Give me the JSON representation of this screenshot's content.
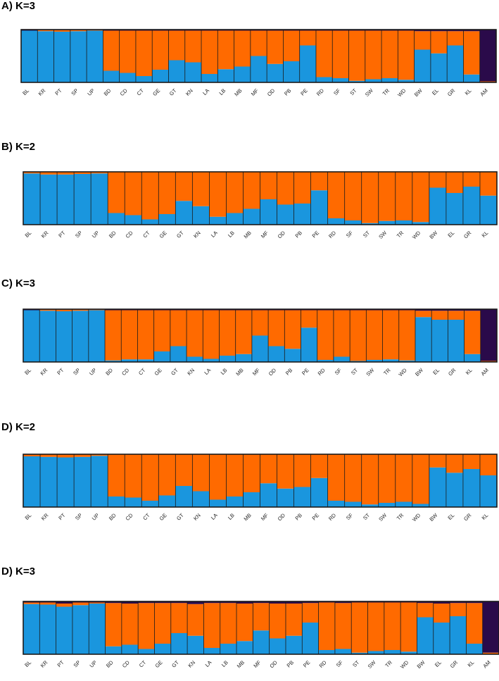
{
  "colors": {
    "blue": "#1a96de",
    "orange": "#ff6a00",
    "purple": "#2a0a4a",
    "frame": "#1a1a1a"
  },
  "chart_data": [
    {
      "type": "bar",
      "stacked": true,
      "title": "A) K=3",
      "ylim": [
        0,
        1
      ],
      "categories": [
        "BL",
        "KR",
        "PT",
        "SP",
        "UP",
        "BD",
        "CD",
        "CT",
        "GE",
        "GT",
        "KN",
        "LA",
        "LB",
        "MB",
        "MF",
        "OD",
        "PB",
        "PE",
        "RD",
        "SF",
        "ST",
        "SW",
        "TR",
        "WD",
        "BW",
        "EL",
        "GR",
        "KL",
        "AM"
      ],
      "series": [
        {
          "values": [
            0.98,
            0.97,
            0.96,
            0.97,
            0.98,
            0.22,
            0.18,
            0.12,
            0.24,
            0.42,
            0.38,
            0.16,
            0.25,
            0.3,
            0.5,
            0.35,
            0.4,
            0.7,
            0.1,
            0.08,
            0.03,
            0.06,
            0.08,
            0.05,
            0.62,
            0.55,
            0.7,
            0.15,
            0.0
          ]
        },
        {
          "values": [
            0.0,
            0.02,
            0.03,
            0.02,
            0.01,
            0.76,
            0.8,
            0.86,
            0.74,
            0.56,
            0.6,
            0.82,
            0.73,
            0.68,
            0.48,
            0.63,
            0.58,
            0.28,
            0.88,
            0.9,
            0.95,
            0.92,
            0.9,
            0.93,
            0.35,
            0.42,
            0.27,
            0.82,
            0.02
          ]
        },
        {
          "values": [
            0.02,
            0.01,
            0.01,
            0.01,
            0.01,
            0.02,
            0.02,
            0.02,
            0.02,
            0.02,
            0.02,
            0.02,
            0.02,
            0.02,
            0.02,
            0.02,
            0.02,
            0.02,
            0.02,
            0.02,
            0.02,
            0.02,
            0.02,
            0.02,
            0.03,
            0.03,
            0.03,
            0.03,
            0.98
          ]
        }
      ]
    },
    {
      "type": "bar",
      "stacked": true,
      "title": "B) K=2",
      "ylim": [
        0,
        1
      ],
      "categories": [
        "BL",
        "KR",
        "PT",
        "SP",
        "UP",
        "BD",
        "CD",
        "CT",
        "GE",
        "GT",
        "KN",
        "LA",
        "LB",
        "MB",
        "MF",
        "OD",
        "PB",
        "PE",
        "RD",
        "SF",
        "ST",
        "SW",
        "TR",
        "WD",
        "BW",
        "EL",
        "GR",
        "KL"
      ],
      "series": [
        {
          "values": [
            0.97,
            0.95,
            0.95,
            0.96,
            0.97,
            0.22,
            0.18,
            0.1,
            0.2,
            0.45,
            0.35,
            0.15,
            0.22,
            0.3,
            0.48,
            0.38,
            0.4,
            0.65,
            0.12,
            0.08,
            0.03,
            0.07,
            0.08,
            0.05,
            0.7,
            0.6,
            0.72,
            0.55
          ]
        },
        {
          "values": [
            0.03,
            0.05,
            0.05,
            0.04,
            0.03,
            0.78,
            0.82,
            0.9,
            0.8,
            0.55,
            0.65,
            0.85,
            0.78,
            0.7,
            0.52,
            0.62,
            0.6,
            0.35,
            0.88,
            0.92,
            0.97,
            0.93,
            0.92,
            0.95,
            0.3,
            0.4,
            0.28,
            0.45
          ]
        }
      ]
    },
    {
      "type": "bar",
      "stacked": true,
      "title": "C) K=3",
      "ylim": [
        0,
        1
      ],
      "categories": [
        "BL",
        "KR",
        "PT",
        "SP",
        "UP",
        "BD",
        "CD",
        "CT",
        "GE",
        "GT",
        "KN",
        "LA",
        "LB",
        "MB",
        "MF",
        "OD",
        "PB",
        "PE",
        "RD",
        "SF",
        "ST",
        "SW",
        "TR",
        "WD",
        "BW",
        "EL",
        "GR",
        "KL",
        "AM"
      ],
      "series": [
        {
          "values": [
            0.98,
            0.97,
            0.96,
            0.97,
            0.98,
            0.03,
            0.05,
            0.05,
            0.2,
            0.3,
            0.1,
            0.06,
            0.12,
            0.15,
            0.5,
            0.3,
            0.25,
            0.65,
            0.04,
            0.1,
            0.02,
            0.04,
            0.05,
            0.03,
            0.85,
            0.8,
            0.8,
            0.15,
            0.0
          ]
        },
        {
          "values": [
            0.0,
            0.02,
            0.03,
            0.02,
            0.01,
            0.95,
            0.93,
            0.93,
            0.78,
            0.68,
            0.88,
            0.92,
            0.86,
            0.83,
            0.48,
            0.68,
            0.73,
            0.33,
            0.94,
            0.88,
            0.96,
            0.94,
            0.93,
            0.95,
            0.12,
            0.17,
            0.17,
            0.82,
            0.02
          ]
        },
        {
          "values": [
            0.02,
            0.01,
            0.01,
            0.01,
            0.01,
            0.02,
            0.02,
            0.02,
            0.02,
            0.02,
            0.02,
            0.02,
            0.02,
            0.02,
            0.02,
            0.02,
            0.02,
            0.02,
            0.02,
            0.02,
            0.02,
            0.02,
            0.02,
            0.02,
            0.03,
            0.03,
            0.03,
            0.03,
            0.98
          ]
        }
      ]
    },
    {
      "type": "bar",
      "stacked": true,
      "title": "D) K=2",
      "ylim": [
        0,
        1
      ],
      "categories": [
        "BL",
        "KR",
        "PT",
        "SP",
        "UP",
        "BD",
        "CD",
        "CT",
        "GE",
        "GT",
        "KN",
        "LA",
        "LB",
        "MB",
        "MF",
        "OD",
        "PB",
        "PE",
        "RD",
        "SF",
        "ST",
        "SW",
        "TR",
        "WD",
        "BW",
        "EL",
        "GR",
        "KL"
      ],
      "series": [
        {
          "values": [
            0.96,
            0.95,
            0.94,
            0.95,
            0.97,
            0.2,
            0.18,
            0.12,
            0.22,
            0.4,
            0.3,
            0.14,
            0.2,
            0.28,
            0.45,
            0.35,
            0.38,
            0.55,
            0.12,
            0.1,
            0.05,
            0.08,
            0.1,
            0.06,
            0.75,
            0.65,
            0.72,
            0.6
          ]
        },
        {
          "values": [
            0.04,
            0.05,
            0.06,
            0.05,
            0.03,
            0.8,
            0.82,
            0.88,
            0.78,
            0.6,
            0.7,
            0.86,
            0.8,
            0.72,
            0.55,
            0.65,
            0.62,
            0.45,
            0.88,
            0.9,
            0.95,
            0.92,
            0.9,
            0.94,
            0.25,
            0.35,
            0.28,
            0.4
          ]
        }
      ]
    },
    {
      "type": "bar",
      "stacked": true,
      "title": "D) K=3",
      "ylim": [
        0,
        1
      ],
      "categories": [
        "BL",
        "KR",
        "PT",
        "SP",
        "UP",
        "BD",
        "CD",
        "CT",
        "GE",
        "GT",
        "KN",
        "LA",
        "LB",
        "MB",
        "MF",
        "OD",
        "PB",
        "PE",
        "RD",
        "SF",
        "ST",
        "SW",
        "TR",
        "WD",
        "BW",
        "EL",
        "GR",
        "KL",
        "AM"
      ],
      "series": [
        {
          "values": [
            0.95,
            0.94,
            0.9,
            0.93,
            0.96,
            0.15,
            0.18,
            0.1,
            0.2,
            0.4,
            0.35,
            0.12,
            0.2,
            0.25,
            0.45,
            0.3,
            0.35,
            0.6,
            0.08,
            0.1,
            0.03,
            0.06,
            0.08,
            0.05,
            0.7,
            0.6,
            0.72,
            0.2,
            0.0
          ]
        },
        {
          "values": [
            0.03,
            0.04,
            0.06,
            0.05,
            0.02,
            0.82,
            0.78,
            0.87,
            0.77,
            0.57,
            0.6,
            0.85,
            0.77,
            0.71,
            0.52,
            0.66,
            0.61,
            0.37,
            0.9,
            0.87,
            0.95,
            0.92,
            0.9,
            0.93,
            0.27,
            0.36,
            0.25,
            0.77,
            0.03
          ]
        },
        {
          "values": [
            0.02,
            0.02,
            0.04,
            0.02,
            0.02,
            0.03,
            0.04,
            0.03,
            0.03,
            0.03,
            0.05,
            0.03,
            0.03,
            0.04,
            0.03,
            0.04,
            0.04,
            0.03,
            0.02,
            0.03,
            0.02,
            0.02,
            0.02,
            0.02,
            0.03,
            0.04,
            0.03,
            0.03,
            0.97
          ]
        }
      ]
    }
  ]
}
